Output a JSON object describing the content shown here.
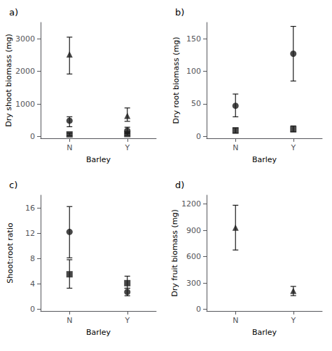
{
  "chart_data": [
    {
      "type": "scatter",
      "title": "a)",
      "xlabel": "Barley",
      "ylabel": "Dry shoot biomass (mg)",
      "xlim": [
        0.5,
        2.5
      ],
      "xticks": [
        {
          "value": 1,
          "label": "N"
        },
        {
          "value": 2,
          "label": "Y"
        }
      ],
      "ylim": [
        -50,
        3500
      ],
      "yticks": [
        0,
        1000,
        2000,
        3000
      ],
      "grid": false,
      "series": [
        {
          "marker": "square",
          "color": "#1a1a1a",
          "x": [
            1.0,
            2.0
          ],
          "values": [
            70,
            80
          ],
          "err_low": [
            35,
            35
          ],
          "err_high": [
            40,
            40
          ]
        },
        {
          "marker": "circle",
          "color": "#1a1a1a",
          "x": [
            1.0,
            2.0
          ],
          "values": [
            490,
            185
          ],
          "err_low": [
            185,
            90
          ],
          "err_high": [
            120,
            105
          ]
        },
        {
          "marker": "triangle",
          "color": "#1a1a1a",
          "x": [
            1.0,
            2.0
          ],
          "values": [
            2520,
            640
          ],
          "err_low": [
            600,
            170
          ],
          "err_high": [
            530,
            240
          ]
        }
      ]
    },
    {
      "type": "scatter",
      "title": "b)",
      "xlabel": "Barley",
      "ylabel": "Dry root biomass (mg)",
      "xlim": [
        0.5,
        2.5
      ],
      "xticks": [
        {
          "value": 1,
          "label": "N"
        },
        {
          "value": 2,
          "label": "Y"
        }
      ],
      "ylim": [
        -3,
        175
      ],
      "yticks": [
        0,
        50,
        100,
        150
      ],
      "grid": false,
      "series": [
        {
          "marker": "square",
          "color": "#1a1a1a",
          "x": [
            1.0,
            2.0
          ],
          "values": [
            9,
            11
          ],
          "err_low": [
            4,
            4
          ],
          "err_high": [
            4,
            5
          ]
        },
        {
          "marker": "circle",
          "color": "#1a1a1a",
          "x": [
            1.0,
            2.0
          ],
          "values": [
            47,
            127
          ],
          "err_low": [
            17,
            42
          ],
          "err_high": [
            18,
            42
          ]
        }
      ]
    },
    {
      "type": "scatter",
      "title": "c)",
      "xlabel": "Barley",
      "ylabel": "Shoot:root ratio",
      "xlim": [
        0.5,
        2.5
      ],
      "xticks": [
        {
          "value": 1,
          "label": "N"
        },
        {
          "value": 2,
          "label": "Y"
        }
      ],
      "ylim": [
        -0.3,
        18
      ],
      "yticks": [
        0,
        4,
        8,
        12,
        16
      ],
      "grid": false,
      "series": [
        {
          "marker": "square",
          "color": "#1a1a1a",
          "x": [
            1.0,
            2.0
          ],
          "values": [
            5.5,
            4.1
          ],
          "err_low": [
            2.2,
            0.8
          ],
          "err_high": [
            2.3,
            1.1
          ]
        },
        {
          "marker": "circle",
          "color": "#1a1a1a",
          "x": [
            1.0,
            2.0
          ],
          "values": [
            12.2,
            2.7
          ],
          "err_low": [
            4.1,
            0.6
          ],
          "err_high": [
            4.0,
            0.6
          ]
        }
      ]
    },
    {
      "type": "scatter",
      "title": "d)",
      "xlabel": "Barley",
      "ylabel": "Dry fruit biomass (mg)",
      "xlim": [
        0.5,
        2.5
      ],
      "xticks": [
        {
          "value": 1,
          "label": "N"
        },
        {
          "value": 2,
          "label": "Y"
        }
      ],
      "ylim": [
        -20,
        1300
      ],
      "yticks": [
        0,
        300,
        600,
        900,
        1200
      ],
      "grid": false,
      "series": [
        {
          "marker": "triangle",
          "color": "#1a1a1a",
          "x": [
            1.0,
            2.0
          ],
          "values": [
            930,
            210
          ],
          "err_low": [
            255,
            55
          ],
          "err_high": [
            255,
            50
          ]
        }
      ]
    }
  ]
}
